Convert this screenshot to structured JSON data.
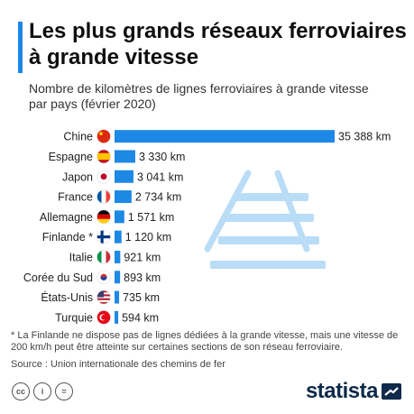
{
  "header": {
    "title": "Les plus grands réseaux ferroviaires à grande vitesse",
    "subtitle": "Nombre de kilomètres de lignes ferroviaires à grande vitesse par pays (février 2020)"
  },
  "colors": {
    "accent": "#1e88e5",
    "bar": "#1e88e5",
    "rail": "#b9dcf7",
    "brand": "#0f2a4a"
  },
  "chart_data": {
    "type": "bar",
    "orientation": "horizontal",
    "categories": [
      "Chine",
      "Espagne",
      "Japon",
      "France",
      "Allemagne",
      "Finlande *",
      "Italie",
      "Corée du Sud",
      "États-Unis",
      "Turquie"
    ],
    "values": [
      35388,
      3330,
      3041,
      2734,
      1571,
      1120,
      921,
      893,
      735,
      594
    ],
    "value_labels": [
      "35 388 km",
      "3 330 km",
      "3 041 km",
      "2 734 km",
      "1 571 km",
      "1 120 km",
      "921 km",
      "893 km",
      "735 km",
      "594 km"
    ],
    "flags": [
      "china-flag",
      "spain-flag",
      "japan-flag",
      "france-flag",
      "germany-flag",
      "finland-flag",
      "italy-flag",
      "south-korea-flag",
      "usa-flag",
      "turkey-flag"
    ],
    "xlim": [
      0,
      35388
    ],
    "grid": false,
    "legend": "none"
  },
  "footer": {
    "note": "* La Finlande ne dispose pas de lignes dédiées à la grande vitesse, mais une vitesse de 200 km/h peut être atteinte sur certaines sections de son réseau ferroviaire.",
    "source": "Source : Union internationale des chemins de fer",
    "license_icons": [
      "cc-icon",
      "attribution-icon",
      "no-derivatives-icon"
    ],
    "license_glyphs": [
      "cc",
      "i",
      "="
    ],
    "brand": "statista"
  }
}
